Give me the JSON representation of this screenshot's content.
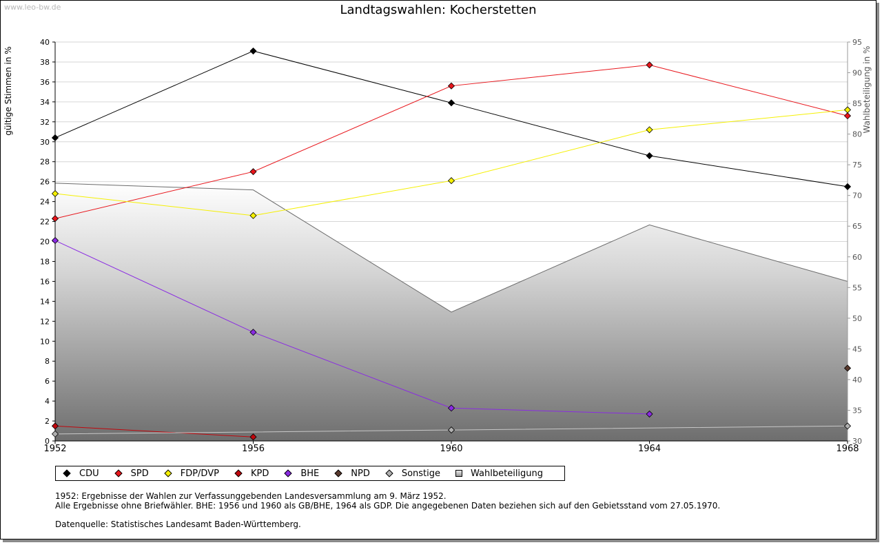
{
  "watermark": "www.leo-bw.de",
  "chart_data": {
    "type": "line",
    "title": "Landtagswahlen: Kocherstetten",
    "xlabel": "",
    "ylabel": "gültige Stimmen in %",
    "y2label": "Wahlbeteiligung in %",
    "categories": [
      "1952",
      "1956",
      "1960",
      "1964",
      "1968"
    ],
    "ylim": [
      0,
      40
    ],
    "y2lim": [
      30,
      95
    ],
    "yticks": [
      "0",
      "2",
      "4",
      "6",
      "8",
      "10",
      "12",
      "14",
      "16",
      "18",
      "20",
      "22",
      "24",
      "26",
      "28",
      "30",
      "32",
      "34",
      "36",
      "38",
      "40"
    ],
    "y2ticks": [
      "30",
      "35",
      "40",
      "45",
      "50",
      "55",
      "60",
      "65",
      "70",
      "75",
      "80",
      "85",
      "90",
      "95"
    ],
    "series": [
      {
        "name": "CDU",
        "color": "#000000",
        "values": [
          30.4,
          39.1,
          33.9,
          28.6,
          25.5
        ]
      },
      {
        "name": "SPD",
        "color": "#e8151b",
        "values": [
          22.3,
          27.0,
          35.6,
          37.7,
          32.6
        ]
      },
      {
        "name": "FDP/DVP",
        "color": "#f5f000",
        "values": [
          24.8,
          22.6,
          26.1,
          31.2,
          33.2
        ]
      },
      {
        "name": "KPD",
        "color": "#c0060c",
        "values": [
          1.5,
          0.4,
          null,
          null,
          null
        ]
      },
      {
        "name": "BHE",
        "color": "#8a2be2",
        "values": [
          20.1,
          10.9,
          3.3,
          2.7,
          null
        ]
      },
      {
        "name": "NPD",
        "color": "#5a3a2e",
        "values": [
          null,
          null,
          null,
          null,
          7.3
        ]
      },
      {
        "name": "Sonstige",
        "color": "#b0b0b0",
        "values": [
          0.7,
          null,
          1.1,
          null,
          1.5
        ]
      }
    ],
    "turnout": {
      "name": "Wahlbeteiligung",
      "axis": "right",
      "values": [
        72.0,
        70.9,
        51.0,
        65.2,
        56.0
      ]
    },
    "grid": true,
    "legend_position": "bottom"
  },
  "legend": [
    {
      "label": "CDU",
      "color": "#000000"
    },
    {
      "label": "SPD",
      "color": "#e8151b"
    },
    {
      "label": "FDP/DVP",
      "color": "#f5f000"
    },
    {
      "label": "KPD",
      "color": "#c0060c"
    },
    {
      "label": "BHE",
      "color": "#8a2be2"
    },
    {
      "label": "NPD",
      "color": "#5a3a2e"
    },
    {
      "label": "Sonstige",
      "color": "#b0b0b0"
    },
    {
      "label": "Wahlbeteiligung",
      "color": "#b8b8b8"
    }
  ],
  "notes": {
    "line1": "1952: Ergebnisse der Wahlen zur Verfassunggebenden Landesversammlung am 9. März 1952.",
    "line2": "Alle Ergebnisse ohne Briefwähler. BHE: 1956 und 1960 als GB/BHE, 1964 als GDP. Die angegebenen Daten beziehen sich auf den Gebietsstand vom 27.05.1970.",
    "source": "Datenquelle: Statistisches Landesamt Baden-Württemberg."
  }
}
